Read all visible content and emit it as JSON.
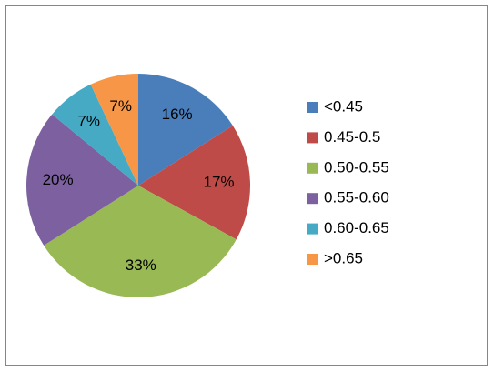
{
  "chart_data": {
    "type": "pie",
    "categories": [
      "<0.45",
      "0.45-0.5",
      "0.50-0.55",
      "0.55-0.60",
      "0.60-0.65",
      ">0.65"
    ],
    "values": [
      16,
      17,
      33,
      20,
      7,
      7
    ],
    "value_labels": [
      "16%",
      "17%",
      "33%",
      "20%",
      "7%",
      "7%"
    ],
    "colors": [
      "#4a7ebb",
      "#be4b48",
      "#98b954",
      "#7d60a0",
      "#46aac5",
      "#f79646"
    ],
    "legend": "right"
  }
}
